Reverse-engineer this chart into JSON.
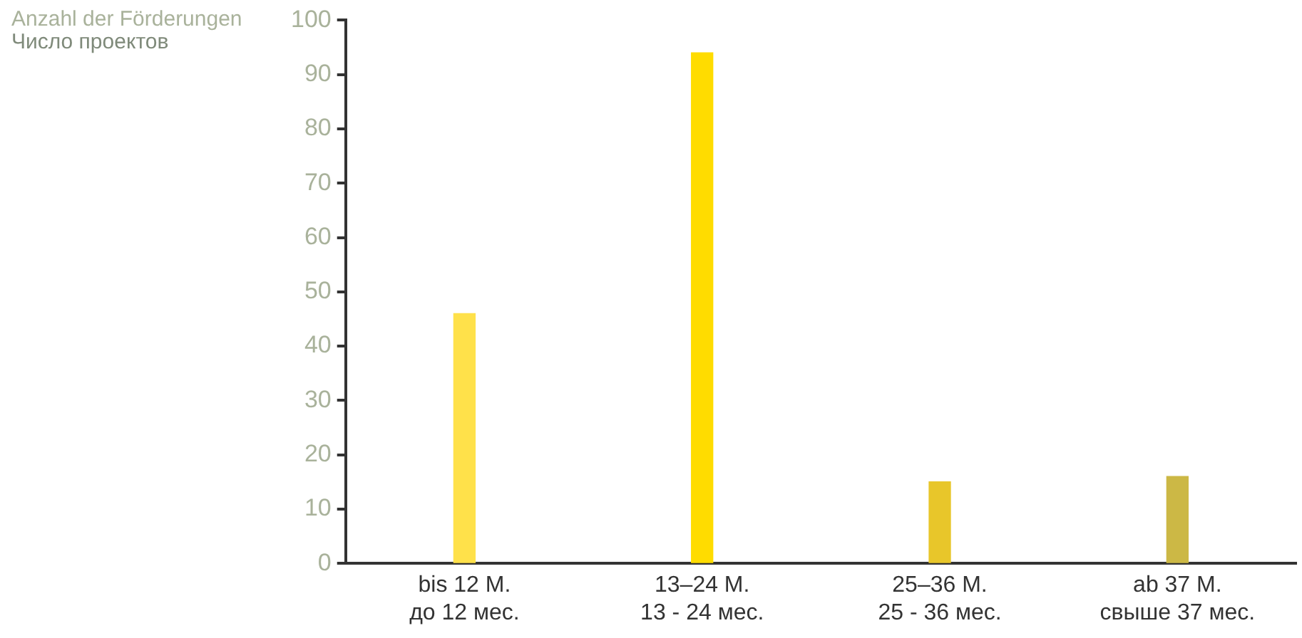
{
  "chart_data": {
    "type": "bar",
    "ylabel": "Anzahl der Förderungen\nЧисло проектов",
    "categories": [
      "bis 12 M.\nдо 12 мес.",
      "13–24 M.\n13 - 24 мес.",
      "25–36 M.\n25 - 36 мес.",
      "ab 37 M.\nсвыше 37 мес."
    ],
    "values": [
      46,
      94,
      15,
      16
    ],
    "colors": [
      "#ffe14a",
      "#ffdc00",
      "#e8c62a",
      "#ccb845"
    ],
    "ylim": [
      0,
      100
    ],
    "yticks": [
      0,
      10,
      20,
      30,
      40,
      50,
      60,
      70,
      80,
      90,
      100
    ],
    "grid": false,
    "legend": false
  }
}
